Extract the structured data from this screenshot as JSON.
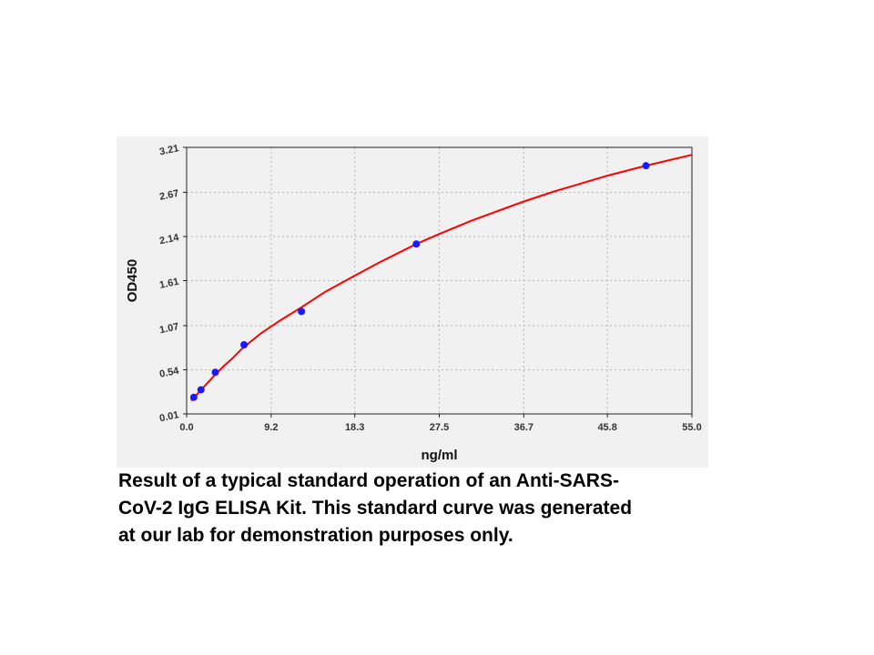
{
  "chart_data": {
    "type": "scatter",
    "title": "",
    "xlabel": "ng/ml",
    "ylabel": "OD450",
    "xlim": [
      0,
      55
    ],
    "ylim": [
      0.01,
      3.21
    ],
    "x_ticks": [
      "0.0",
      "9.2",
      "18.3",
      "27.5",
      "36.7",
      "45.8",
      "55.0"
    ],
    "y_ticks": [
      "0.01",
      "0.54",
      "1.07",
      "1.61",
      "2.14",
      "2.67",
      "3.21"
    ],
    "grid": true,
    "series": [
      {
        "type": "scatter",
        "color": "#1a1aff",
        "points": [
          {
            "x": 0.78,
            "y": 0.21
          },
          {
            "x": 1.56,
            "y": 0.3
          },
          {
            "x": 3.12,
            "y": 0.51
          },
          {
            "x": 6.25,
            "y": 0.84
          },
          {
            "x": 12.5,
            "y": 1.24
          },
          {
            "x": 25.0,
            "y": 2.05
          },
          {
            "x": 50.0,
            "y": 2.99
          }
        ]
      },
      {
        "type": "line",
        "color": "#ff0000",
        "fit_curve": [
          {
            "x": 0.5,
            "y": 0.17
          },
          {
            "x": 1.0,
            "y": 0.23
          },
          {
            "x": 2.0,
            "y": 0.35
          },
          {
            "x": 3.0,
            "y": 0.47
          },
          {
            "x": 4.0,
            "y": 0.58
          },
          {
            "x": 5.0,
            "y": 0.68
          },
          {
            "x": 6.0,
            "y": 0.79
          },
          {
            "x": 8.0,
            "y": 0.97
          },
          {
            "x": 10.0,
            "y": 1.12
          },
          {
            "x": 12.5,
            "y": 1.29
          },
          {
            "x": 15.0,
            "y": 1.47
          },
          {
            "x": 18.3,
            "y": 1.67
          },
          {
            "x": 21.0,
            "y": 1.83
          },
          {
            "x": 25.0,
            "y": 2.05
          },
          {
            "x": 27.5,
            "y": 2.17
          },
          {
            "x": 31.0,
            "y": 2.33
          },
          {
            "x": 36.7,
            "y": 2.56
          },
          {
            "x": 40.0,
            "y": 2.68
          },
          {
            "x": 45.8,
            "y": 2.87
          },
          {
            "x": 50.0,
            "y": 2.99
          },
          {
            "x": 55.0,
            "y": 3.12
          }
        ]
      }
    ]
  },
  "caption": {
    "line1": "Result of a typical standard operation of an Anti-SARS-",
    "line2": "CoV-2 IgG ELISA Kit. This standard curve was generated",
    "line3": "at our lab for demonstration purposes only."
  }
}
